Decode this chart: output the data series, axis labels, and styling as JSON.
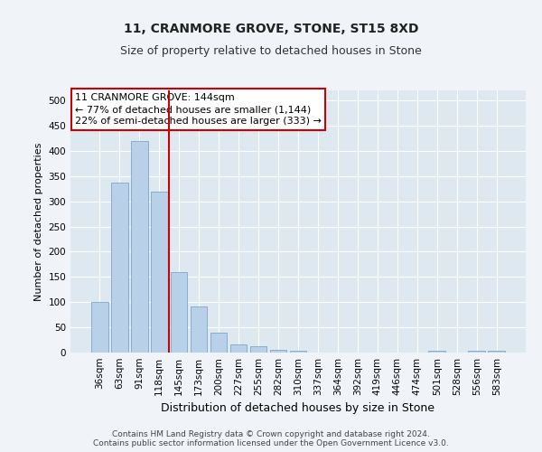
{
  "title": "11, CRANMORE GROVE, STONE, ST15 8XD",
  "subtitle": "Size of property relative to detached houses in Stone",
  "xlabel": "Distribution of detached houses by size in Stone",
  "ylabel": "Number of detached properties",
  "categories": [
    "36sqm",
    "63sqm",
    "91sqm",
    "118sqm",
    "145sqm",
    "173sqm",
    "200sqm",
    "227sqm",
    "255sqm",
    "282sqm",
    "310sqm",
    "337sqm",
    "364sqm",
    "392sqm",
    "419sqm",
    "446sqm",
    "474sqm",
    "501sqm",
    "528sqm",
    "556sqm",
    "583sqm"
  ],
  "values": [
    100,
    337,
    420,
    320,
    160,
    92,
    40,
    17,
    13,
    6,
    4,
    0,
    0,
    0,
    0,
    0,
    0,
    3,
    0,
    3,
    3
  ],
  "bar_color": "#b8d0e8",
  "bar_edge_color": "#7ba7c9",
  "redline_index": 4,
  "property_label": "11 CRANMORE GROVE: 144sqm",
  "annotation_line1": "← 77% of detached houses are smaller (1,144)",
  "annotation_line2": "22% of semi-detached houses are larger (333) →",
  "annotation_box_facecolor": "#ffffff",
  "annotation_box_edgecolor": "#cc0000",
  "redline_color": "#cc0000",
  "ylim": [
    0,
    520
  ],
  "yticks": [
    0,
    50,
    100,
    150,
    200,
    250,
    300,
    350,
    400,
    450,
    500
  ],
  "plot_bg_color": "#dde8f0",
  "fig_bg_color": "#f0f4f8",
  "footer_line1": "Contains HM Land Registry data © Crown copyright and database right 2024.",
  "footer_line2": "Contains public sector information licensed under the Open Government Licence v3.0.",
  "title_fontsize": 10,
  "subtitle_fontsize": 9,
  "ylabel_fontsize": 8,
  "xlabel_fontsize": 9,
  "tick_fontsize": 7.5,
  "annot_fontsize": 8
}
